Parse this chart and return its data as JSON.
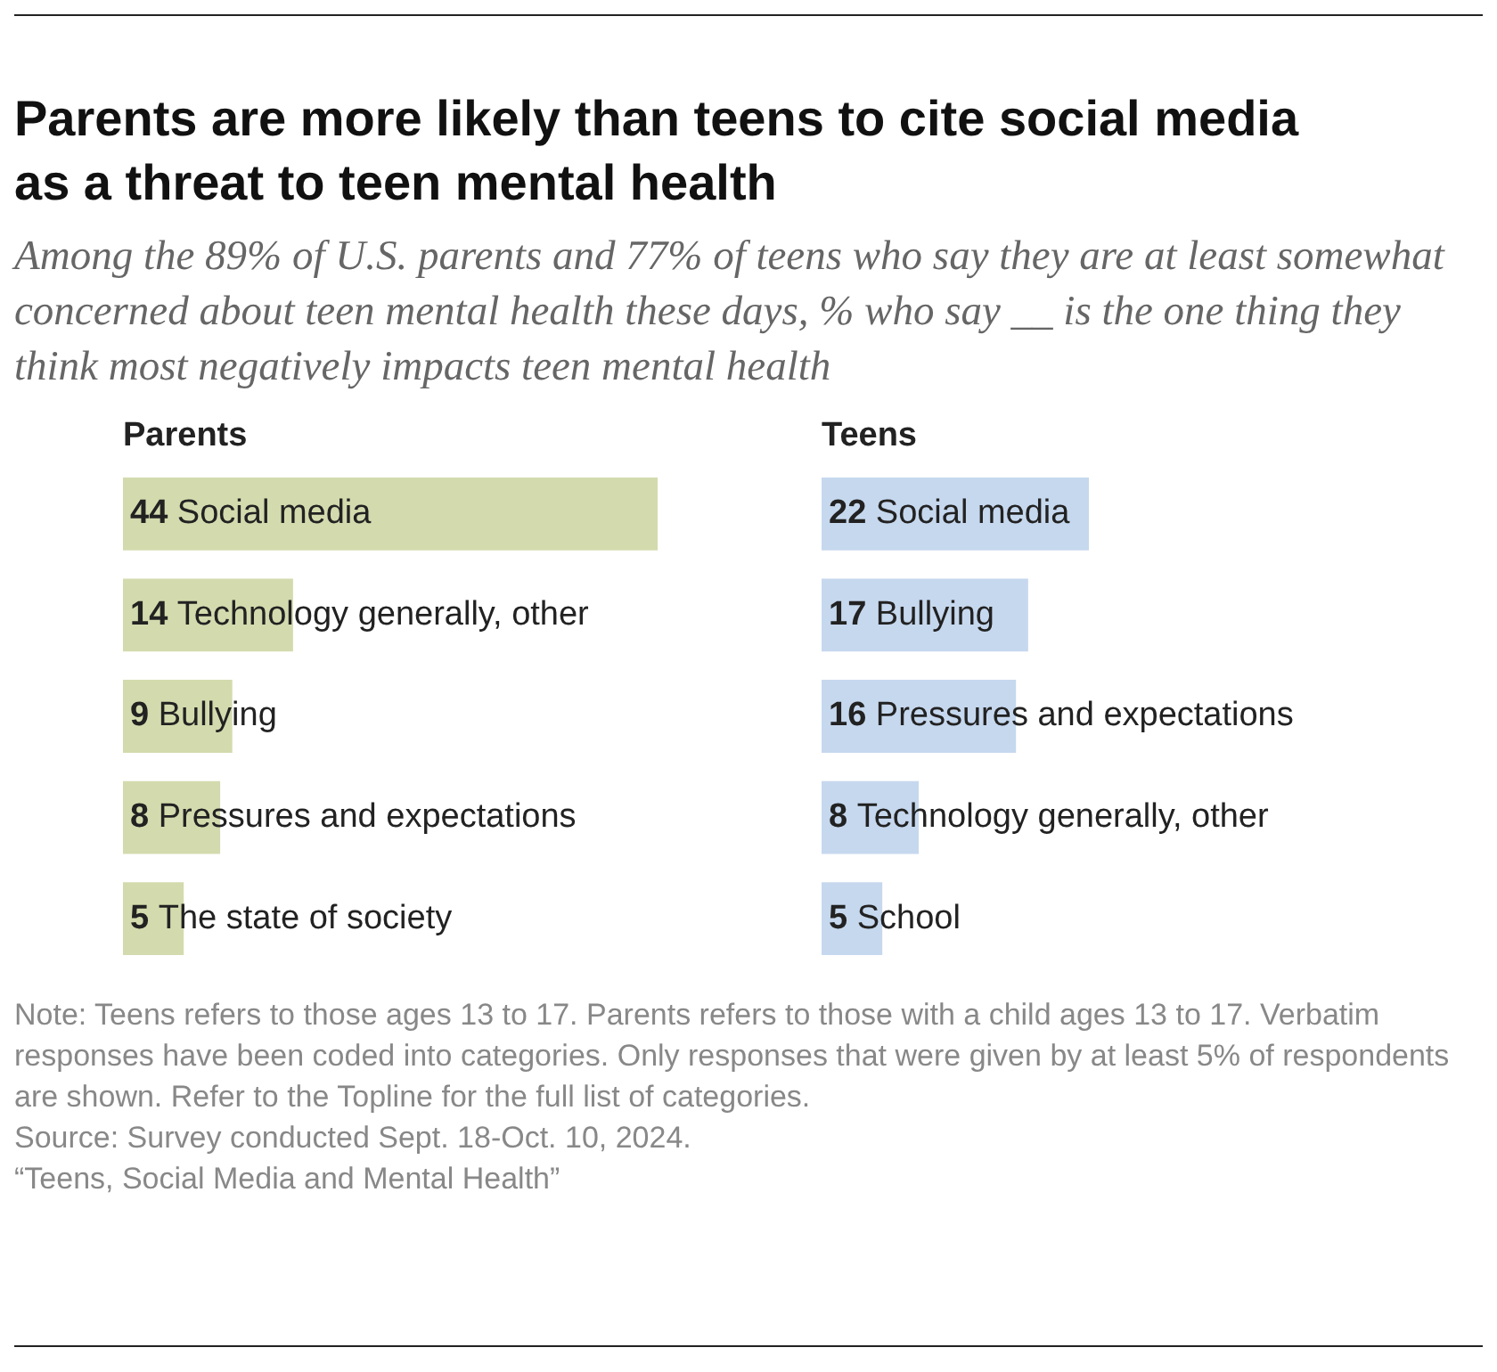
{
  "chart_data": [
    {
      "type": "bar",
      "orientation": "horizontal",
      "title": "Parents are more likely than teens to cite social media as a threat to teen mental health",
      "subtitle": "Among the 89% of U.S. parents and 77% of teens who say they are at least somewhat concerned about teen mental health these days, % who say __ is the one thing they think most negatively impacts teen mental health",
      "categories": [
        "Social media",
        "Technology generally, other",
        "Bullying",
        "Pressures and expectations",
        "The state of society"
      ],
      "series": [
        {
          "name": "Parents",
          "color": "#d3dbae",
          "values": [
            44,
            14,
            9,
            8,
            5
          ]
        }
      ],
      "data_labels": true,
      "annotations": [
        "Note: Teens refers to those ages 13 to 17. Parents refers to those with a child ages 13 to 17. Verbatim responses have been coded into categories. Only responses that were given by at least 5% of respondents are shown. Refer to the Topline for the full list of categories.",
        "Source: Survey conducted Sept. 18-Oct. 10, 2024.",
        "“Teens, Social Media and Mental Health”"
      ]
    },
    {
      "type": "bar",
      "orientation": "horizontal",
      "categories": [
        "Social media",
        "Bullying",
        "Pressures and expectations",
        "Technology generally, other",
        "School"
      ],
      "series": [
        {
          "name": "Teens",
          "color": "#c6d8ee",
          "values": [
            22,
            17,
            16,
            8,
            5
          ]
        }
      ],
      "data_labels": true
    }
  ]
}
